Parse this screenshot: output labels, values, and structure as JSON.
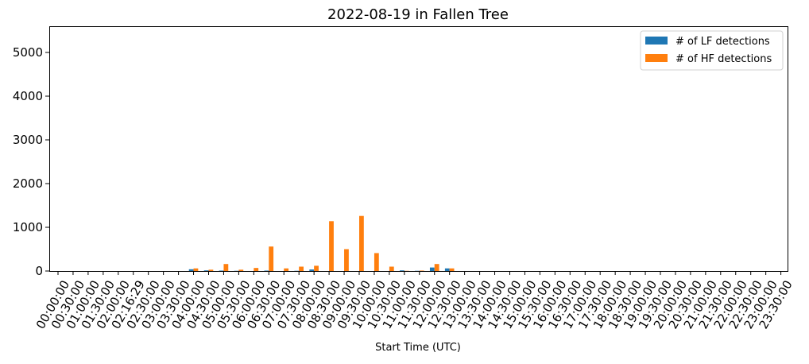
{
  "chart_data": {
    "type": "bar",
    "title": "2022-08-19 in Fallen Tree",
    "xlabel": "Start Time (UTC)",
    "ylabel": "",
    "ylim": [
      0,
      5600
    ],
    "yticks": [
      0,
      1000,
      2000,
      3000,
      4000,
      5000
    ],
    "grid": false,
    "legend_position": "top-right",
    "categories": [
      "00:00:00",
      "00:30:00",
      "01:00:00",
      "01:30:00",
      "02:00:00",
      "02:16:29",
      "02:30:00",
      "03:00:00",
      "03:30:00",
      "04:00:00",
      "04:30:00",
      "05:00:00",
      "05:30:00",
      "06:00:00",
      "06:30:00",
      "07:00:00",
      "07:30:00",
      "08:00:00",
      "08:30:00",
      "09:00:00",
      "09:30:00",
      "10:00:00",
      "10:30:00",
      "11:00:00",
      "11:30:00",
      "12:00:00",
      "12:30:00",
      "13:00:00",
      "13:30:00",
      "14:00:00",
      "14:30:00",
      "15:00:00",
      "15:30:00",
      "16:00:00",
      "16:30:00",
      "17:00:00",
      "17:30:00",
      "18:00:00",
      "18:30:00",
      "19:00:00",
      "19:30:00",
      "20:00:00",
      "20:30:00",
      "21:00:00",
      "21:30:00",
      "22:00:00",
      "22:30:00",
      "23:00:00",
      "23:30:00"
    ],
    "series": [
      {
        "name": "# of LF detections",
        "color": "#1f77b4",
        "values": [
          0,
          0,
          0,
          0,
          0,
          0,
          0,
          0,
          0,
          40,
          15,
          10,
          5,
          0,
          10,
          0,
          5,
          35,
          0,
          0,
          0,
          0,
          0,
          15,
          5,
          80,
          60,
          0,
          0,
          0,
          0,
          0,
          0,
          0,
          0,
          0,
          0,
          0,
          0,
          0,
          0,
          0,
          0,
          0,
          0,
          0,
          0,
          0,
          0
        ]
      },
      {
        "name": "# of HF detections",
        "color": "#ff7f0e",
        "values": [
          0,
          0,
          0,
          0,
          0,
          0,
          0,
          0,
          0,
          60,
          30,
          160,
          30,
          70,
          560,
          60,
          100,
          120,
          1140,
          500,
          1260,
          410,
          100,
          5,
          10,
          160,
          60,
          0,
          0,
          0,
          0,
          0,
          0,
          0,
          0,
          0,
          0,
          0,
          0,
          0,
          0,
          0,
          0,
          0,
          0,
          0,
          0,
          0,
          0
        ]
      }
    ]
  }
}
